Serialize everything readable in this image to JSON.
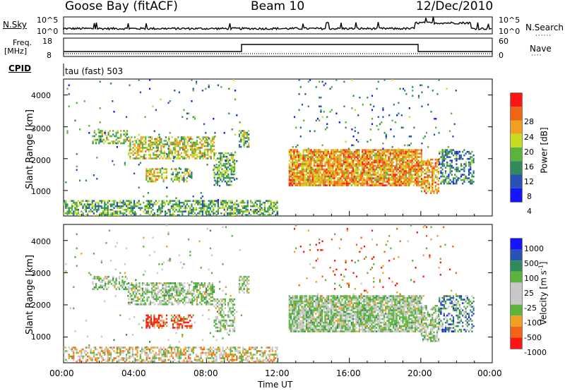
{
  "header": {
    "station": "Goose Bay (fitACF)",
    "beam": "Beam 10",
    "date": "12/Dec/2010"
  },
  "panels": {
    "nsky_label": "N.Sky",
    "nsearch_label": "N.Search",
    "nsky_ticks": [
      "10^5",
      "10^0"
    ],
    "nsearch_ticks": [
      "10^5",
      "10^0"
    ],
    "freq_label_line1": "Freq.",
    "freq_label_line2": "[MHz]",
    "freq_ticks": [
      "18",
      "8"
    ],
    "nave_label": "Nave",
    "nave_ticks": [
      "60",
      "0"
    ],
    "cpid_label": "CPID",
    "cpid_text": "tau (fast) 503"
  },
  "colors": {
    "power_scale": [
      "#1414ff",
      "#2852b4",
      "#2f8c5a",
      "#5ab43c",
      "#c8dc1e",
      "#f0a01e",
      "#f06414",
      "#ff1414"
    ],
    "velocity_scale": [
      "#ff1414",
      "#f06414",
      "#f0a01e",
      "#5ab43c",
      "#c8c8c8",
      "#c8c8c8",
      "#5ab43c",
      "#2f8c5a",
      "#2852b4",
      "#1414ff"
    ]
  },
  "chart_data": [
    {
      "type": "heatmap",
      "title": "Power",
      "xlabel": "Time UT",
      "ylabel": "Slant Range [km]",
      "ylim": [
        200,
        4500
      ],
      "xlim": [
        "00:00",
        "24:00"
      ],
      "x_ticks": [
        "00:00",
        "04:00",
        "08:00",
        "12:00",
        "16:00",
        "20:00",
        "00:00"
      ],
      "y_ticks": [
        1000,
        2000,
        3000,
        4000
      ],
      "colorbar_label": "Power [dB]",
      "colorbar_ticks": [
        "28",
        "24",
        "20",
        "16",
        "12",
        "8",
        "4"
      ],
      "regions": [
        {
          "t0": 0.0,
          "t1": 12.0,
          "r0": 220,
          "r1": 700,
          "level": 0.4,
          "density": 0.55
        },
        {
          "t0": 1.6,
          "t1": 3.6,
          "r0": 2500,
          "r1": 2900,
          "level": 0.45,
          "density": 0.5
        },
        {
          "t0": 3.6,
          "t1": 8.4,
          "r0": 2000,
          "r1": 2700,
          "level": 0.55,
          "density": 0.6
        },
        {
          "t0": 8.4,
          "t1": 9.6,
          "r0": 1200,
          "r1": 2200,
          "level": 0.4,
          "density": 0.5
        },
        {
          "t0": 4.6,
          "t1": 5.8,
          "r0": 1300,
          "r1": 1700,
          "level": 0.6,
          "density": 0.6
        },
        {
          "t0": 6.0,
          "t1": 7.2,
          "r0": 1300,
          "r1": 1700,
          "level": 0.45,
          "density": 0.5
        },
        {
          "t0": 9.8,
          "t1": 10.4,
          "r0": 2400,
          "r1": 2900,
          "level": 0.45,
          "density": 0.6
        },
        {
          "t0": 12.6,
          "t1": 20.0,
          "r0": 1150,
          "r1": 2300,
          "level": 0.7,
          "density": 0.85
        },
        {
          "t0": 20.0,
          "t1": 21.0,
          "r0": 900,
          "r1": 2000,
          "level": 0.7,
          "density": 0.6
        },
        {
          "t0": 21.0,
          "t1": 23.0,
          "r0": 1200,
          "r1": 2300,
          "level": 0.3,
          "density": 0.45
        },
        {
          "t0": 12.8,
          "t1": 22.0,
          "r0": 2300,
          "r1": 4500,
          "level": 0.3,
          "density": 0.03
        },
        {
          "t0": 0.0,
          "t1": 10.0,
          "r0": 700,
          "r1": 4500,
          "level": 0.3,
          "density": 0.015
        }
      ]
    },
    {
      "type": "heatmap",
      "title": "Velocity",
      "xlabel": "Time UT",
      "ylabel": "Slant Range [km]",
      "ylim": [
        200,
        4500
      ],
      "xlim": [
        "00:00",
        "24:00"
      ],
      "x_ticks": [
        "00:00",
        "04:00",
        "08:00",
        "12:00",
        "16:00",
        "20:00",
        "00:00"
      ],
      "y_ticks": [
        1000,
        2000,
        3000,
        4000
      ],
      "colorbar_label": "Velocity [m s^-1]",
      "colorbar_ticks": [
        "1000",
        "500",
        "100",
        "25",
        "-25",
        "-100",
        "-500",
        "-1000"
      ],
      "regions": [
        {
          "t0": 0.0,
          "t1": 12.0,
          "r0": 220,
          "r1": 700,
          "level": 0.35,
          "density": 0.55
        },
        {
          "t0": 1.6,
          "t1": 3.6,
          "r0": 2500,
          "r1": 2900,
          "level": 0.5,
          "density": 0.5
        },
        {
          "t0": 3.6,
          "t1": 8.4,
          "r0": 2000,
          "r1": 2700,
          "level": 0.5,
          "density": 0.6
        },
        {
          "t0": 8.4,
          "t1": 9.6,
          "r0": 1200,
          "r1": 2200,
          "level": 0.5,
          "density": 0.5
        },
        {
          "t0": 4.6,
          "t1": 5.8,
          "r0": 1300,
          "r1": 1700,
          "level": 0.08,
          "density": 0.6
        },
        {
          "t0": 6.0,
          "t1": 7.2,
          "r0": 1300,
          "r1": 1700,
          "level": 0.18,
          "density": 0.5
        },
        {
          "t0": 9.8,
          "t1": 10.4,
          "r0": 2400,
          "r1": 2900,
          "level": 0.5,
          "density": 0.6
        },
        {
          "t0": 12.6,
          "t1": 20.0,
          "r0": 1150,
          "r1": 2300,
          "level": 0.5,
          "density": 0.85
        },
        {
          "t0": 20.0,
          "t1": 21.0,
          "r0": 900,
          "r1": 2000,
          "level": 0.5,
          "density": 0.6
        },
        {
          "t0": 21.0,
          "t1": 23.0,
          "r0": 1200,
          "r1": 2300,
          "level": 0.72,
          "density": 0.45
        },
        {
          "t0": 12.8,
          "t1": 22.0,
          "r0": 2300,
          "r1": 4500,
          "level": 0.2,
          "density": 0.03
        },
        {
          "t0": 0.0,
          "t1": 10.0,
          "r0": 700,
          "r1": 4500,
          "level": 0.5,
          "density": 0.015
        }
      ]
    }
  ]
}
